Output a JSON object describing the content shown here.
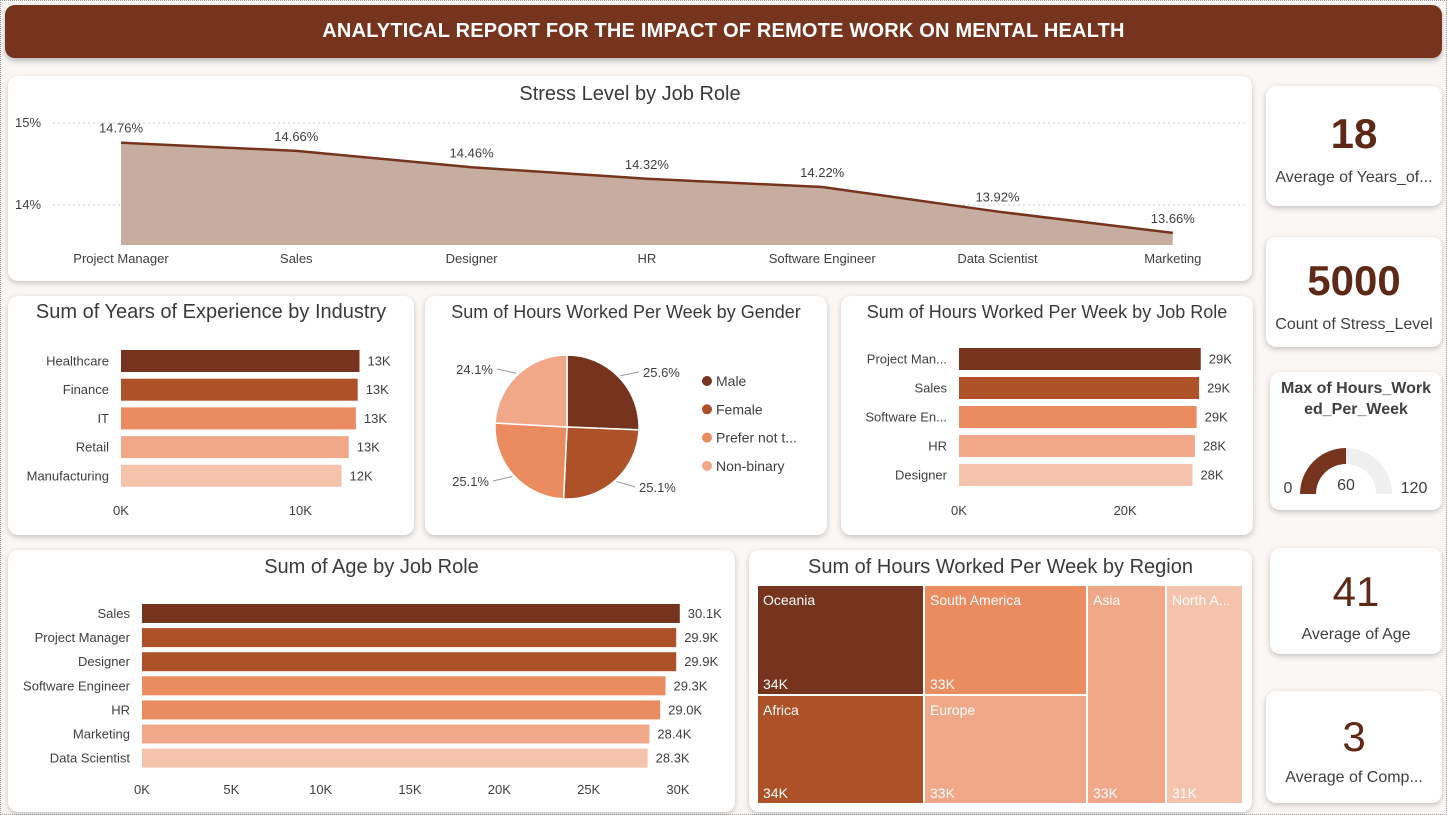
{
  "header": {
    "title": "ANALYTICAL REPORT FOR THE IMPACT OF REMOTE WORK ON MENTAL HEALTH"
  },
  "colors": {
    "shade1": "#76341e",
    "shade2": "#ad5128",
    "shade3": "#ea8b60",
    "shade4": "#f0a888",
    "shade5": "#f5c2ab",
    "area_fill": "#c6ad9f"
  },
  "charts": {
    "stress": {
      "title": "Stress Level by Job Role",
      "ytick_labels": [
        "15%",
        "14%"
      ],
      "categories": [
        "Project Manager",
        "Sales",
        "Designer",
        "HR",
        "Software Engineer",
        "Data Scientist",
        "Marketing"
      ],
      "data_labels": [
        "14.76%",
        "14.66%",
        "14.46%",
        "14.32%",
        "14.22%",
        "13.92%",
        "13.66%"
      ]
    },
    "experience": {
      "title": "Sum of Years of Experience by Industry",
      "categories": [
        "Healthcare",
        "Finance",
        "IT",
        "Retail",
        "Manufacturing"
      ],
      "data_labels": [
        "13K",
        "13K",
        "13K",
        "13K",
        "12K"
      ],
      "xtick_labels": [
        "0K",
        "10K"
      ]
    },
    "gender": {
      "title": "Sum of Hours Worked Per Week by Gender",
      "legend": [
        "Male",
        "Female",
        "Prefer not t...",
        "Non-binary"
      ],
      "data_labels": [
        "25.6%",
        "25.1%",
        "25.1%",
        "24.1%"
      ]
    },
    "hours_role": {
      "title": "Sum of Hours Worked Per Week by Job Role",
      "categories": [
        "Project Man...",
        "Sales",
        "Software En...",
        "HR",
        "Designer"
      ],
      "data_labels": [
        "29K",
        "29K",
        "29K",
        "28K",
        "28K"
      ],
      "xtick_labels": [
        "0K",
        "20K"
      ]
    },
    "age": {
      "title": "Sum of Age by Job Role",
      "categories": [
        "Sales",
        "Project Manager",
        "Designer",
        "Software Engineer",
        "HR",
        "Marketing",
        "Data Scientist"
      ],
      "data_labels": [
        "30.1K",
        "29.9K",
        "29.9K",
        "29.3K",
        "29.0K",
        "28.4K",
        "28.3K"
      ],
      "xtick_labels": [
        "0K",
        "5K",
        "10K",
        "15K",
        "20K",
        "25K",
        "30K"
      ]
    },
    "region": {
      "title": "Sum of Hours Worked Per Week by Region",
      "cells": [
        {
          "name": "Oceania",
          "label": "34K"
        },
        {
          "name": "Africa",
          "label": "34K"
        },
        {
          "name": "South America",
          "label": "33K"
        },
        {
          "name": "Europe",
          "label": "33K"
        },
        {
          "name": "Asia",
          "label": "33K"
        },
        {
          "name": "North A...",
          "label": "31K"
        }
      ]
    }
  },
  "kpis": {
    "years": {
      "value": "18",
      "label": "Average of Years_of..."
    },
    "count": {
      "value": "5000",
      "label": "Count of Stress_Level"
    },
    "gauge": {
      "title": "Max of Hours_Worked_Per_Week",
      "min_label": "0",
      "value_label": "60",
      "max_label": "120"
    },
    "age": {
      "value": "41",
      "label": "Average of Age"
    },
    "comp": {
      "value": "3",
      "label": "Average of Comp..."
    }
  },
  "chart_data": [
    {
      "type": "area",
      "title": "Stress Level by Job Role",
      "categories": [
        "Project Manager",
        "Sales",
        "Designer",
        "HR",
        "Software Engineer",
        "Data Scientist",
        "Marketing"
      ],
      "values": [
        14.76,
        14.66,
        14.46,
        14.32,
        14.22,
        13.92,
        13.66
      ],
      "yticks": [
        15,
        14
      ],
      "ylim": [
        13.5,
        15.0
      ],
      "grid": true
    },
    {
      "type": "bar",
      "orientation": "horizontal",
      "title": "Sum of Years of Experience by Industry",
      "categories": [
        "Healthcare",
        "Finance",
        "IT",
        "Retail",
        "Manufacturing"
      ],
      "values": [
        13300,
        13200,
        13100,
        12700,
        12300
      ],
      "xticks": [
        0,
        10000
      ],
      "xlim": [
        0,
        14500
      ]
    },
    {
      "type": "pie",
      "title": "Sum of Hours Worked Per Week by Gender",
      "labels": [
        "Male",
        "Female",
        "Prefer not t...",
        "Non-binary"
      ],
      "values": [
        25.6,
        25.1,
        25.1,
        24.1
      ],
      "legend": "right"
    },
    {
      "type": "bar",
      "orientation": "horizontal",
      "title": "Sum of Hours Worked Per Week by Job Role",
      "categories": [
        "Project Man...",
        "Sales",
        "Software En...",
        "HR",
        "Designer"
      ],
      "values": [
        29100,
        28900,
        28600,
        28400,
        28100
      ],
      "xticks": [
        0,
        20000
      ],
      "xlim": [
        0,
        32500
      ]
    },
    {
      "type": "bar",
      "orientation": "horizontal",
      "title": "Sum of Age by Job Role",
      "categories": [
        "Sales",
        "Project Manager",
        "Designer",
        "Software Engineer",
        "HR",
        "Marketing",
        "Data Scientist"
      ],
      "values": [
        30100,
        29900,
        29900,
        29300,
        29000,
        28400,
        28300
      ],
      "xticks": [
        0,
        5000,
        10000,
        15000,
        20000,
        25000,
        30000
      ],
      "xlim": [
        0,
        30000
      ]
    },
    {
      "type": "treemap",
      "title": "Sum of Hours Worked Per Week by Region",
      "labels": [
        "Oceania",
        "Africa",
        "South America",
        "Europe",
        "Asia",
        "North A..."
      ],
      "values": [
        34000,
        34000,
        33000,
        33000,
        33000,
        31000
      ]
    },
    {
      "type": "gauge",
      "title": "Max of Hours_Worked_Per_Week",
      "value": 60,
      "min": 0,
      "max": 120
    }
  ]
}
